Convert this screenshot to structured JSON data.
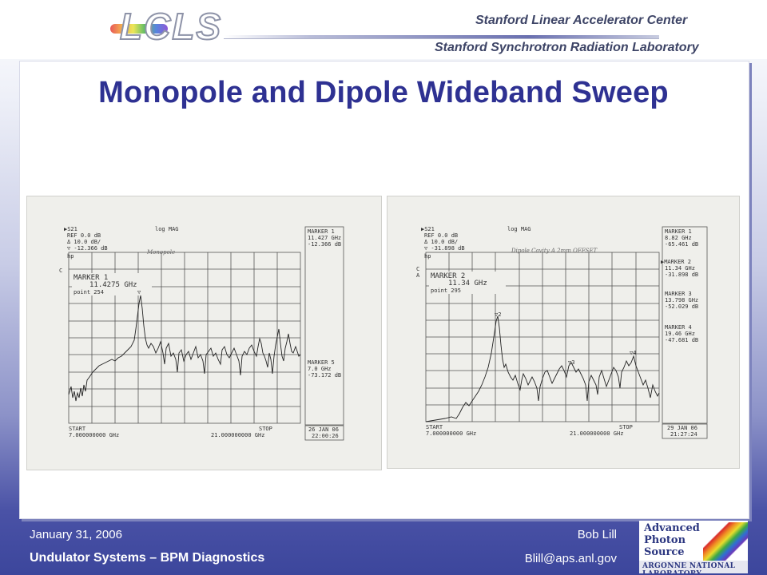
{
  "header": {
    "logo_text": "LCLS",
    "org_line1": "Stanford Linear Accelerator Center",
    "org_line2": "Stanford Synchrotron Radiation Laboratory"
  },
  "slide": {
    "title": "Monopole and Dipole Wideband Sweep"
  },
  "plots": {
    "left": {
      "scale_line1": "▶S21",
      "scale_line2": "REF 0.0 dB",
      "scale_line3": "Δ 10.0 dB/",
      "scale_line4": "▽ -12.366 dB",
      "format": "log MAG",
      "hp": "hp",
      "handwritten_label": "Monopole",
      "channel": "C",
      "marker_box_line1": "MARKER 1",
      "marker_box_line2": "11.4275 GHz",
      "marker_box_line3": "point 254",
      "panel_m1_title": "MARKER 1",
      "panel_m1_freq": "11.427 GHz",
      "panel_m1_db": "-12.366 dB",
      "panel_m5_title": "MARKER 5",
      "panel_m5_freq": "7.0 GHz",
      "panel_m5_db": "-73.172 dB",
      "start_label": "START",
      "start_value": "7.000000000 GHz",
      "stop_label": "STOP",
      "stop_value": "21.000000000 GHz",
      "date": "26 JAN 06",
      "time": "22:00:26"
    },
    "right": {
      "scale_line1": "▶S21",
      "scale_line2": "REF 0.0 dB",
      "scale_line3": "Δ 10.0 dB/",
      "scale_line4": "▽ -31.898 dB",
      "format": "log MAG",
      "hp": "hp",
      "handwritten_label": "Dipole Cavity A 2mm OFFSET",
      "channel": "C",
      "channel2": "A",
      "marker_box_line1": "MARKER 2",
      "marker_box_line2": "11.34 GHz",
      "marker_box_line3": "point 295",
      "panel_m1_title": "MARKER 1",
      "panel_m1_freq": "8.82 GHz",
      "panel_m1_db": "-65.461 dB",
      "panel_m2_title": "▶MARKER 2",
      "panel_m2_freq": "11.34 GHz",
      "panel_m2_db": "-31.898 dB",
      "panel_m3_title": "MARKER 3",
      "panel_m3_freq": "13.798 GHz",
      "panel_m3_db": "-52.029 dB",
      "panel_m4_title": "MARKER 4",
      "panel_m4_freq": "19.46 GHz",
      "panel_m4_db": "-47.681 dB",
      "start_label": "START",
      "start_value": "7.000000000 GHz",
      "stop_label": "STOP",
      "stop_value": "21.000000000 GHz",
      "date": "29 JAN 06",
      "time": "21:27:24"
    }
  },
  "footer": {
    "date": "January 31, 2006",
    "project": "Undulator Systems – BPM Diagnostics",
    "author": "Bob Lill",
    "email": "Blill@aps.anl.gov"
  },
  "aps_logo": {
    "line1": "Advanced",
    "line2": "Photon",
    "line3": "Source",
    "lab": "ARGONNE NATIONAL LABORATORY"
  }
}
